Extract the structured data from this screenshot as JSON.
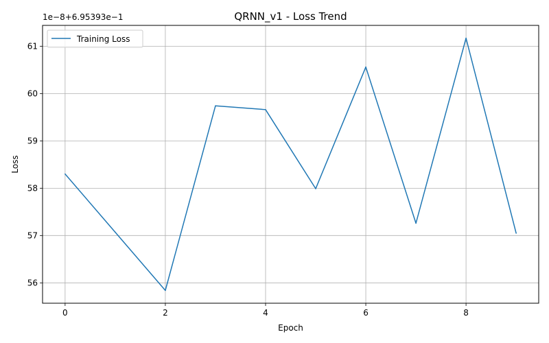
{
  "chart_data": {
    "type": "line",
    "title": "QRNN_v1 - Loss Trend",
    "xlabel": "Epoch",
    "ylabel": "Loss",
    "y_offset_text": "1e−8+6.95393e−1",
    "x": [
      0,
      1,
      2,
      3,
      4,
      5,
      6,
      7,
      8,
      9
    ],
    "series": [
      {
        "name": "Training Loss",
        "color": "#1f77b4",
        "values": [
          58.3,
          57.07,
          55.84,
          59.74,
          59.66,
          57.99,
          60.56,
          57.26,
          61.17,
          57.05
        ]
      }
    ],
    "xlim": [
      -0.45,
      9.45
    ],
    "ylim": [
      55.57,
      61.44
    ],
    "x_ticks": [
      0,
      2,
      4,
      6,
      8
    ],
    "y_ticks": [
      56,
      57,
      58,
      59,
      60,
      61
    ],
    "grid": true,
    "legend_position": "top-left"
  }
}
